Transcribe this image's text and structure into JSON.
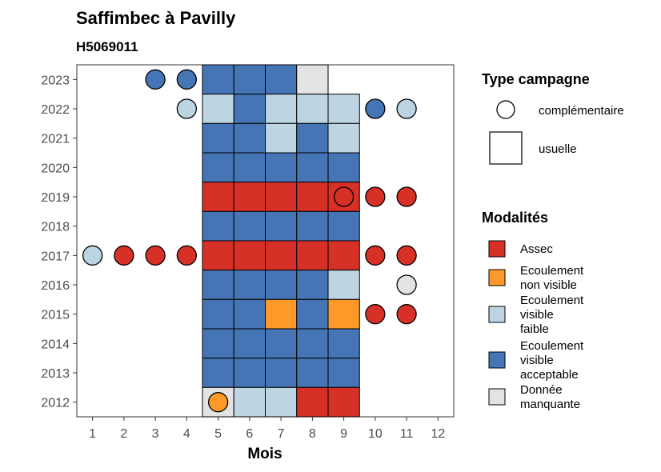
{
  "chart_data": {
    "type": "heatmap",
    "title": "Saffimbec à Pavilly",
    "subtitle": "H5069011",
    "xlabel": "Mois",
    "ylabel": "",
    "x_ticks": [
      1,
      2,
      3,
      4,
      5,
      6,
      7,
      8,
      9,
      10,
      11,
      12
    ],
    "y_ticks": [
      2012,
      2013,
      2014,
      2015,
      2016,
      2017,
      2018,
      2019,
      2020,
      2021,
      2022,
      2023
    ],
    "xlim": [
      0.5,
      12.5
    ],
    "ylim": [
      2011.5,
      2023.5
    ],
    "grid": false,
    "colors": {
      "Assec": "#d73027",
      "Ecoulement non visible": "#fe9929",
      "Ecoulement visible faible": "#bdd4e3",
      "Ecoulement visible acceptable": "#4575b4",
      "Donnée manquante": "#e3e3e3"
    },
    "legend_type": {
      "title": "Type campagne",
      "items": [
        {
          "key": "complementaire",
          "label": "complémentaire",
          "shape": "circle"
        },
        {
          "key": "usuelle",
          "label": "usuelle",
          "shape": "square"
        }
      ]
    },
    "legend_modalites": {
      "title": "Modalités",
      "items": [
        {
          "key": "Assec",
          "lines": [
            "Assec"
          ]
        },
        {
          "key": "Ecoulement non visible",
          "lines": [
            "Ecoulement",
            "non visible"
          ]
        },
        {
          "key": "Ecoulement visible faible",
          "lines": [
            "Ecoulement",
            "visible",
            "faible"
          ]
        },
        {
          "key": "Ecoulement visible acceptable",
          "lines": [
            "Ecoulement",
            "visible",
            "acceptable"
          ]
        },
        {
          "key": "Donnée manquante",
          "lines": [
            "Donnée",
            "manquante"
          ]
        }
      ]
    },
    "usuelle": [
      {
        "year": 2023,
        "month": 5,
        "modalite": "Ecoulement visible acceptable"
      },
      {
        "year": 2023,
        "month": 6,
        "modalite": "Ecoulement visible acceptable"
      },
      {
        "year": 2023,
        "month": 7,
        "modalite": "Ecoulement visible acceptable"
      },
      {
        "year": 2023,
        "month": 8,
        "modalite": "Donnée manquante"
      },
      {
        "year": 2022,
        "month": 5,
        "modalite": "Ecoulement visible faible"
      },
      {
        "year": 2022,
        "month": 6,
        "modalite": "Ecoulement visible acceptable"
      },
      {
        "year": 2022,
        "month": 7,
        "modalite": "Ecoulement visible faible"
      },
      {
        "year": 2022,
        "month": 8,
        "modalite": "Ecoulement visible faible"
      },
      {
        "year": 2022,
        "month": 9,
        "modalite": "Ecoulement visible faible"
      },
      {
        "year": 2021,
        "month": 5,
        "modalite": "Ecoulement visible acceptable"
      },
      {
        "year": 2021,
        "month": 6,
        "modalite": "Ecoulement visible acceptable"
      },
      {
        "year": 2021,
        "month": 7,
        "modalite": "Ecoulement visible faible"
      },
      {
        "year": 2021,
        "month": 8,
        "modalite": "Ecoulement visible acceptable"
      },
      {
        "year": 2021,
        "month": 9,
        "modalite": "Ecoulement visible faible"
      },
      {
        "year": 2020,
        "month": 5,
        "modalite": "Ecoulement visible acceptable"
      },
      {
        "year": 2020,
        "month": 6,
        "modalite": "Ecoulement visible acceptable"
      },
      {
        "year": 2020,
        "month": 7,
        "modalite": "Ecoulement visible acceptable"
      },
      {
        "year": 2020,
        "month": 8,
        "modalite": "Ecoulement visible acceptable"
      },
      {
        "year": 2020,
        "month": 9,
        "modalite": "Ecoulement visible acceptable"
      },
      {
        "year": 2019,
        "month": 5,
        "modalite": "Assec"
      },
      {
        "year": 2019,
        "month": 6,
        "modalite": "Assec"
      },
      {
        "year": 2019,
        "month": 7,
        "modalite": "Assec"
      },
      {
        "year": 2019,
        "month": 8,
        "modalite": "Assec"
      },
      {
        "year": 2019,
        "month": 9,
        "modalite": "Assec"
      },
      {
        "year": 2018,
        "month": 5,
        "modalite": "Ecoulement visible acceptable"
      },
      {
        "year": 2018,
        "month": 6,
        "modalite": "Ecoulement visible acceptable"
      },
      {
        "year": 2018,
        "month": 7,
        "modalite": "Ecoulement visible acceptable"
      },
      {
        "year": 2018,
        "month": 8,
        "modalite": "Ecoulement visible acceptable"
      },
      {
        "year": 2018,
        "month": 9,
        "modalite": "Ecoulement visible acceptable"
      },
      {
        "year": 2017,
        "month": 5,
        "modalite": "Assec"
      },
      {
        "year": 2017,
        "month": 6,
        "modalite": "Assec"
      },
      {
        "year": 2017,
        "month": 7,
        "modalite": "Assec"
      },
      {
        "year": 2017,
        "month": 8,
        "modalite": "Assec"
      },
      {
        "year": 2017,
        "month": 9,
        "modalite": "Assec"
      },
      {
        "year": 2016,
        "month": 5,
        "modalite": "Ecoulement visible acceptable"
      },
      {
        "year": 2016,
        "month": 6,
        "modalite": "Ecoulement visible acceptable"
      },
      {
        "year": 2016,
        "month": 7,
        "modalite": "Ecoulement visible acceptable"
      },
      {
        "year": 2016,
        "month": 8,
        "modalite": "Ecoulement visible acceptable"
      },
      {
        "year": 2016,
        "month": 9,
        "modalite": "Ecoulement visible faible"
      },
      {
        "year": 2015,
        "month": 5,
        "modalite": "Ecoulement visible acceptable"
      },
      {
        "year": 2015,
        "month": 6,
        "modalite": "Ecoulement visible acceptable"
      },
      {
        "year": 2015,
        "month": 7,
        "modalite": "Ecoulement non visible"
      },
      {
        "year": 2015,
        "month": 8,
        "modalite": "Ecoulement visible acceptable"
      },
      {
        "year": 2015,
        "month": 9,
        "modalite": "Ecoulement non visible"
      },
      {
        "year": 2014,
        "month": 5,
        "modalite": "Ecoulement visible acceptable"
      },
      {
        "year": 2014,
        "month": 6,
        "modalite": "Ecoulement visible acceptable"
      },
      {
        "year": 2014,
        "month": 7,
        "modalite": "Ecoulement visible acceptable"
      },
      {
        "year": 2014,
        "month": 8,
        "modalite": "Ecoulement visible acceptable"
      },
      {
        "year": 2014,
        "month": 9,
        "modalite": "Ecoulement visible acceptable"
      },
      {
        "year": 2013,
        "month": 5,
        "modalite": "Ecoulement visible acceptable"
      },
      {
        "year": 2013,
        "month": 6,
        "modalite": "Ecoulement visible acceptable"
      },
      {
        "year": 2013,
        "month": 7,
        "modalite": "Ecoulement visible acceptable"
      },
      {
        "year": 2013,
        "month": 8,
        "modalite": "Ecoulement visible acceptable"
      },
      {
        "year": 2013,
        "month": 9,
        "modalite": "Ecoulement visible acceptable"
      },
      {
        "year": 2012,
        "month": 5,
        "modalite": "Donnée manquante"
      },
      {
        "year": 2012,
        "month": 6,
        "modalite": "Ecoulement visible faible"
      },
      {
        "year": 2012,
        "month": 7,
        "modalite": "Ecoulement visible faible"
      },
      {
        "year": 2012,
        "month": 8,
        "modalite": "Assec"
      },
      {
        "year": 2012,
        "month": 9,
        "modalite": "Assec"
      }
    ],
    "complementaire": [
      {
        "year": 2023,
        "month": 3,
        "modalite": "Ecoulement visible acceptable"
      },
      {
        "year": 2023,
        "month": 4,
        "modalite": "Ecoulement visible acceptable"
      },
      {
        "year": 2022,
        "month": 4,
        "modalite": "Ecoulement visible faible"
      },
      {
        "year": 2022,
        "month": 10,
        "modalite": "Ecoulement visible acceptable"
      },
      {
        "year": 2022,
        "month": 11,
        "modalite": "Ecoulement visible faible"
      },
      {
        "year": 2019,
        "month": 9,
        "modalite": "Assec"
      },
      {
        "year": 2019,
        "month": 10,
        "modalite": "Assec"
      },
      {
        "year": 2019,
        "month": 11,
        "modalite": "Assec"
      },
      {
        "year": 2017,
        "month": 1,
        "modalite": "Ecoulement visible faible"
      },
      {
        "year": 2017,
        "month": 2,
        "modalite": "Assec"
      },
      {
        "year": 2017,
        "month": 3,
        "modalite": "Assec"
      },
      {
        "year": 2017,
        "month": 4,
        "modalite": "Assec"
      },
      {
        "year": 2017,
        "month": 10,
        "modalite": "Assec"
      },
      {
        "year": 2017,
        "month": 11,
        "modalite": "Assec"
      },
      {
        "year": 2016,
        "month": 11,
        "modalite": "Donnée manquante"
      },
      {
        "year": 2015,
        "month": 10,
        "modalite": "Assec"
      },
      {
        "year": 2015,
        "month": 11,
        "modalite": "Assec"
      },
      {
        "year": 2012,
        "month": 5,
        "modalite": "Ecoulement non visible"
      }
    ]
  }
}
